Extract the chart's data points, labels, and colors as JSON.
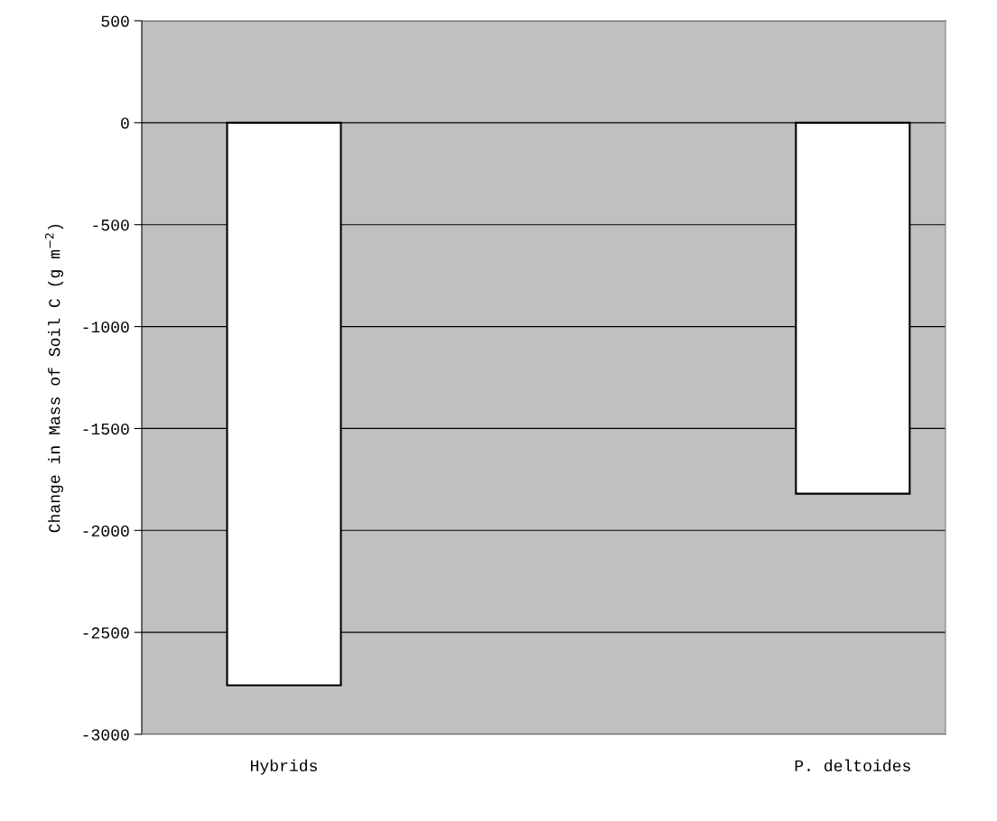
{
  "chart_data": {
    "type": "bar",
    "ylabel": "Change in Mass of Soil C (g m$^{−2}$)",
    "categories": [
      "Hybrids",
      "P. deltoides"
    ],
    "values": [
      -2760,
      -1820
    ],
    "color": "#ffffff",
    "ylim": [
      -3000,
      500
    ],
    "yticks": [
      -3000,
      -2500,
      -2000,
      -1500,
      -1000,
      -500,
      0,
      500
    ],
    "grid": "y",
    "legend": false
  }
}
